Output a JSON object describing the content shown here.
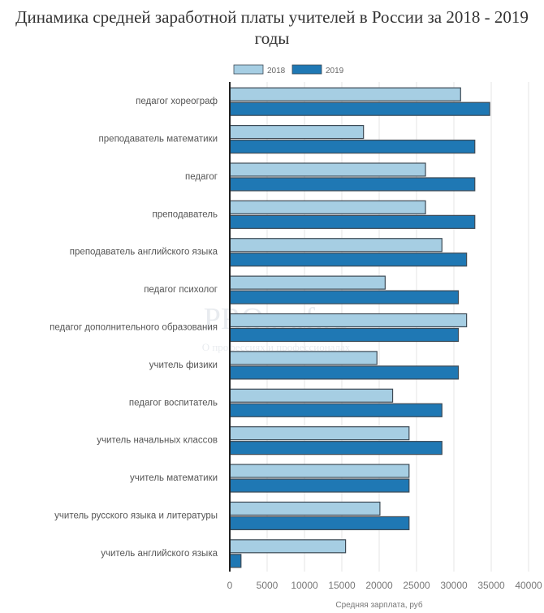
{
  "chart_data": {
    "type": "bar",
    "orientation": "horizontal",
    "title_lines": [
      "Динамика средней заработной платы учителей в России за 2018 - 2019",
      "годы"
    ],
    "xlabel": "Средняя зарплата, руб",
    "ylabel": "",
    "xlim": [
      0,
      40000
    ],
    "xticks": [
      0,
      5000,
      10000,
      15000,
      20000,
      25000,
      30000,
      35000,
      40000
    ],
    "grid": true,
    "legend_position": "top-center",
    "categories": [
      "педагог хореограф",
      "преподаватель математики",
      "педагог",
      "преподаватель",
      "преподаватель английского языка",
      "педагог психолог",
      "педагог дополнительного образования",
      "учитель физики",
      "педагог воспитатель",
      "учитель начальных классов",
      "учитель математики",
      "учитель русского языка и литературы",
      "учитель английского языка"
    ],
    "series": [
      {
        "name": "2018",
        "color": "#a6cee3",
        "values": [
          30900,
          17900,
          26200,
          26200,
          28400,
          20800,
          31700,
          19700,
          21800,
          24000,
          24000,
          20100,
          15500
        ]
      },
      {
        "name": "2019",
        "color": "#1f78b4",
        "values": [
          34800,
          32800,
          32800,
          32800,
          31700,
          30600,
          30600,
          30600,
          28400,
          28400,
          24000,
          24000,
          1500
        ]
      }
    ]
  },
  "watermark": {
    "line1": "PROprof.ru",
    "line2": "О профессиях и профессионалах"
  }
}
